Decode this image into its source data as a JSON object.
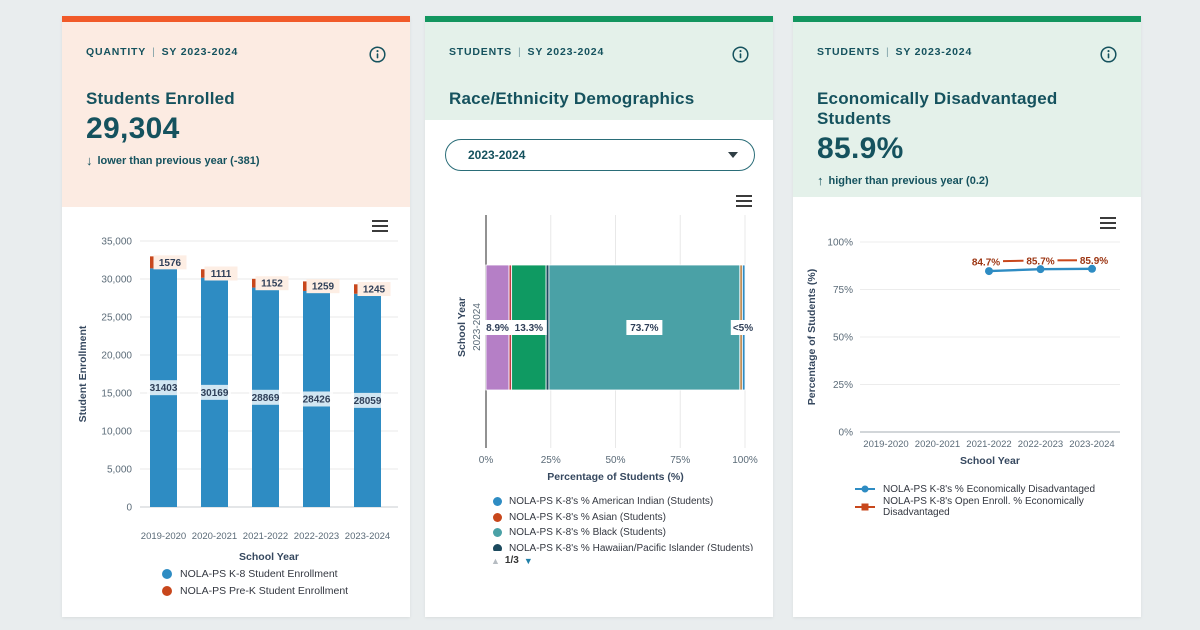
{
  "page": {
    "background": "#e9edee"
  },
  "cards": [
    {
      "kicker": "QUANTITY",
      "separator": "|",
      "period": "SY 2023-2024",
      "accent_color": "#f15a29",
      "header_bg": "#fcebe2",
      "title": "Students Enrolled",
      "big_value": "29,304",
      "delta_arrow": "↓",
      "delta_text": "lower than previous year (-381)",
      "chart_data": {
        "type": "bar",
        "stacked": true,
        "categories": [
          "2019-2020",
          "2020-2021",
          "2021-2022",
          "2022-2023",
          "2023-2024"
        ],
        "series": [
          {
            "name": "NOLA-PS K-8 Student Enrollment",
            "color": "#2e8cc3",
            "values": [
              31403,
              30169,
              28869,
              28426,
              28059
            ]
          },
          {
            "name": "NOLA-PS Pre-K Student Enrollment",
            "color": "#c8471c",
            "values": [
              1576,
              1111,
              1152,
              1259,
              1245
            ]
          }
        ],
        "xlabel": "School Year",
        "ylabel": "Student Enrollment",
        "ylim": [
          0,
          35000
        ],
        "ytick_labels": [
          "0",
          "5,000",
          "10,000",
          "15,000",
          "20,000",
          "25,000",
          "30,000",
          "35,000"
        ],
        "grid": true,
        "legend_position": "bottom"
      }
    },
    {
      "kicker": "STUDENTS",
      "separator": "|",
      "period": "SY 2023-2024",
      "accent_color": "#12965f",
      "header_bg": "#e4f1ea",
      "title": "Race/Ethnicity Demographics",
      "dropdown": {
        "value": "2023-2024"
      },
      "chart_data": {
        "type": "bar",
        "orientation": "horizontal",
        "stacked": true,
        "category": "2023-2024",
        "segments": [
          {
            "color": "#b57fc6",
            "value": 8.9,
            "label": "8.9%"
          },
          {
            "color": "#c23b45",
            "value": 1.0
          },
          {
            "color": "#0f9a62",
            "value": 13.3,
            "label": "13.3%"
          },
          {
            "color": "#1c4a5e",
            "value": 1.1
          },
          {
            "color": "#4aa1a6",
            "value": 73.7,
            "label": "73.7%"
          },
          {
            "color": "#c28f58",
            "value": 1.0
          },
          {
            "color": "#2e8cc3",
            "value": 1.0,
            "label": "<5%",
            "label_at_end": true
          }
        ],
        "xlabel": "Percentage of Students (%)",
        "ylabel": "School Year",
        "xlim": [
          0,
          100
        ],
        "xtick_labels": [
          "0%",
          "25%",
          "50%",
          "75%",
          "100%"
        ],
        "legend": [
          {
            "color": "#2e8cc3",
            "label": "NOLA-PS K-8's % American Indian (Students)"
          },
          {
            "color": "#c8471c",
            "label": "NOLA-PS K-8's % Asian (Students)"
          },
          {
            "color": "#4aa1a6",
            "label": "NOLA-PS K-8's % Black (Students)"
          },
          {
            "color": "#1c4a5e",
            "label": "NOLA-PS K-8's % Hawaiian/Pacific Islander (Students)"
          }
        ],
        "legend_page": "1/3"
      }
    },
    {
      "kicker": "STUDENTS",
      "separator": "|",
      "period": "SY 2023-2024",
      "accent_color": "#12965f",
      "header_bg": "#e4f1ea",
      "title": "Economically Disadvantaged Students",
      "big_value": "85.9%",
      "delta_arrow": "↑",
      "delta_text": "higher than previous year (0.2)",
      "chart_data": {
        "type": "line",
        "categories": [
          "2019-2020",
          "2020-2021",
          "2021-2022",
          "2022-2023",
          "2023-2024"
        ],
        "series": [
          {
            "name": "NOLA-PS K-8's % Economically Disadvantaged",
            "color": "#2e8cc3",
            "marker": "circle",
            "values": [
              null,
              null,
              84.7,
              85.7,
              85.9
            ],
            "point_labels": [
              "84.7%",
              "85.7%",
              "85.9%"
            ]
          },
          {
            "name": "NOLA-PS K-8's Open Enroll. % Economically Disadvantaged",
            "color": "#c8471c",
            "marker": "square",
            "values": [
              null,
              null,
              89.8,
              90.3,
              90.4
            ],
            "values_estimated": true
          }
        ],
        "xlabel": "School Year",
        "ylabel": "Percentage of Students (%)",
        "ylim": [
          0,
          100
        ],
        "ytick_labels": [
          "0%",
          "25%",
          "50%",
          "75%",
          "100%"
        ],
        "grid": true,
        "legend_position": "bottom"
      }
    }
  ]
}
